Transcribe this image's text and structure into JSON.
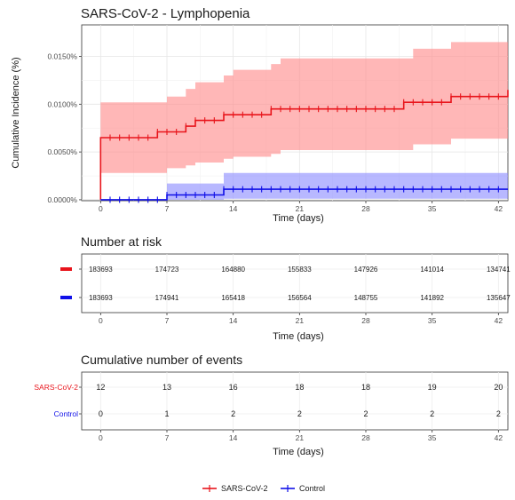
{
  "chart_data": [
    {
      "type": "line",
      "title": "SARS-CoV-2 - Lymphopenia",
      "xlabel": "Time (days)",
      "ylabel": "Cumulative Incidence (%)",
      "xlim": [
        -2,
        43
      ],
      "ylim": [
        -0.0001,
        0.0183
      ],
      "x_ticks": [
        0,
        7,
        14,
        21,
        28,
        35,
        42
      ],
      "x_tick_labels": [
        "0",
        "7",
        "14",
        "21",
        "28",
        "35",
        "42"
      ],
      "y_ticks": [
        0,
        0.005,
        0.01,
        0.015
      ],
      "y_tick_labels": [
        "0.0000%",
        "0.0050%",
        "0.0100%",
        "0.0150%"
      ],
      "grid": true,
      "legend_position": "bottom",
      "series": [
        {
          "name": "SARS-CoV-2",
          "color": "#e8141b",
          "band_color": "#ff8a8a",
          "step_x": [
            0,
            6,
            9,
            10,
            13,
            18,
            32,
            37,
            43
          ],
          "step_y": [
            0.0065,
            0.0071,
            0.0077,
            0.0083,
            0.0089,
            0.0095,
            0.0102,
            0.0108,
            0.0115
          ],
          "ci_x": [
            0,
            6,
            7,
            9,
            10,
            13,
            14,
            18,
            19,
            32,
            33,
            37,
            43
          ],
          "ci_upper": [
            0.0102,
            0.0102,
            0.0108,
            0.0116,
            0.0123,
            0.013,
            0.0136,
            0.0142,
            0.0148,
            0.0148,
            0.0158,
            0.0165,
            0.0165
          ],
          "ci_lower": [
            0.0028,
            0.0028,
            0.0033,
            0.0036,
            0.0039,
            0.0043,
            0.0045,
            0.0048,
            0.0052,
            0.0052,
            0.0058,
            0.0064,
            0.0064
          ],
          "censor_x": [
            1,
            2,
            3,
            4,
            5,
            6,
            7,
            8,
            9,
            10,
            11,
            12,
            13,
            14,
            15,
            16,
            17,
            18,
            19,
            20,
            21,
            22,
            23,
            24,
            25,
            26,
            27,
            28,
            29,
            30,
            31,
            32,
            33,
            34,
            35,
            36,
            37,
            38,
            39,
            40,
            41,
            42
          ]
        },
        {
          "name": "Control",
          "color": "#1010e8",
          "band_color": "#8c8cff",
          "step_x": [
            0,
            7,
            13,
            43
          ],
          "step_y": [
            0,
            0.0005,
            0.0011,
            0.0011
          ],
          "ci_x": [
            0,
            7,
            13,
            43
          ],
          "ci_upper": [
            0,
            0.0017,
            0.0028,
            0.0028
          ],
          "ci_lower": [
            0,
            0,
            0.0001,
            0.0001
          ],
          "censor_x": [
            1,
            2,
            3,
            4,
            5,
            6,
            7,
            8,
            9,
            10,
            11,
            12,
            13,
            14,
            15,
            16,
            17,
            18,
            19,
            20,
            21,
            22,
            23,
            24,
            25,
            26,
            27,
            28,
            29,
            30,
            31,
            32,
            33,
            34,
            35,
            36,
            37,
            38,
            39,
            40,
            41,
            42
          ]
        }
      ]
    },
    {
      "type": "table",
      "title": "Number at risk",
      "xlabel": "Time (days)",
      "x_ticks": [
        0,
        7,
        14,
        21,
        28,
        35,
        42
      ],
      "rows": [
        {
          "color": "#e8141b",
          "values": [
            "183693",
            "174723",
            "164880",
            "155833",
            "147926",
            "141014",
            "134741"
          ]
        },
        {
          "color": "#1010e8",
          "values": [
            "183693",
            "174941",
            "165418",
            "156564",
            "148755",
            "141892",
            "135647"
          ]
        }
      ]
    },
    {
      "type": "table",
      "title": "Cumulative number of events",
      "xlabel": "Time (days)",
      "x_ticks": [
        0,
        7,
        14,
        21,
        28,
        35,
        42
      ],
      "rows": [
        {
          "label": "SARS-CoV-2",
          "color": "#e8141b",
          "values": [
            "12",
            "13",
            "16",
            "18",
            "18",
            "19",
            "20"
          ]
        },
        {
          "label": "Control",
          "color": "#1010e8",
          "values": [
            "0",
            "1",
            "2",
            "2",
            "2",
            "2",
            "2"
          ]
        }
      ]
    }
  ]
}
